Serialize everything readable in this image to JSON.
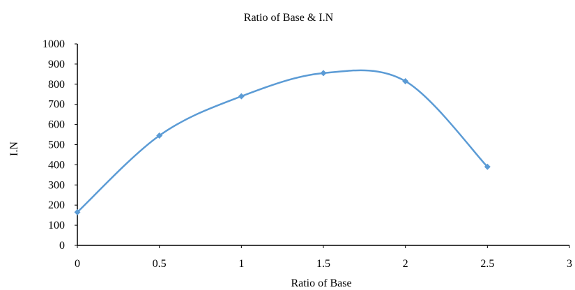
{
  "chart_data": {
    "type": "scatter",
    "title": "Ratio of Base & I.N",
    "xlabel": "Ratio of Base",
    "ylabel": "I.N",
    "xlim": [
      0,
      3
    ],
    "ylim": [
      0,
      1000
    ],
    "x_ticks": [
      "0",
      "0.5",
      "1",
      "1.5",
      "2",
      "2.5",
      "3"
    ],
    "y_ticks": [
      "0",
      "100",
      "200",
      "300",
      "400",
      "500",
      "600",
      "700",
      "800",
      "900",
      "1000"
    ],
    "grid": false,
    "legend": "none",
    "smoothed": true,
    "marker": "diamond",
    "series": [
      {
        "color": "#5B9BD5",
        "x": [
          0,
          0.5,
          1,
          1.5,
          2,
          2.5
        ],
        "y": [
          165,
          545,
          740,
          855,
          815,
          390
        ]
      }
    ]
  }
}
